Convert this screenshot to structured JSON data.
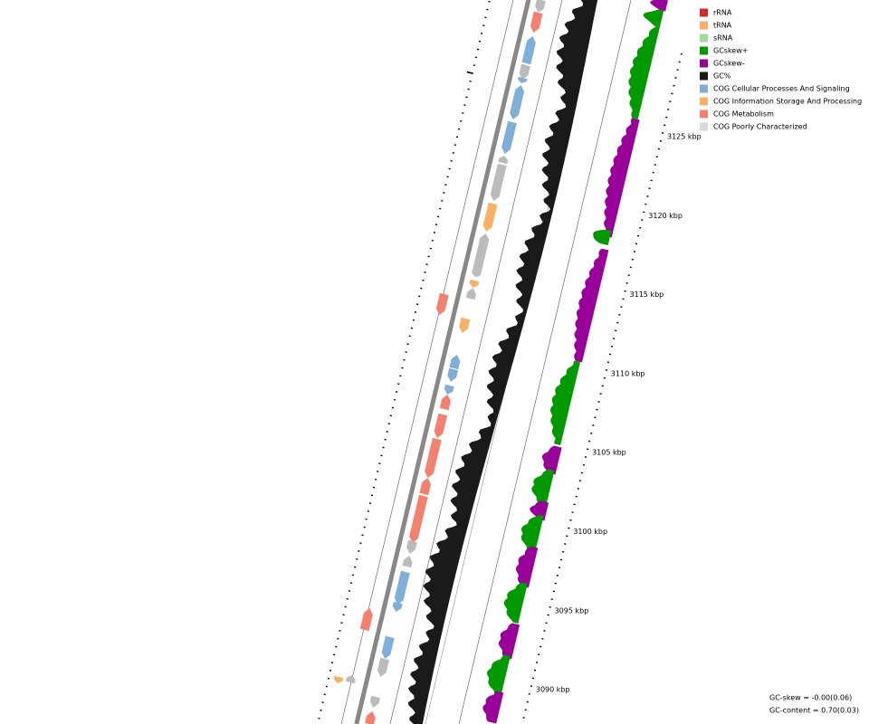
{
  "legend": [
    {
      "label": "rRNA",
      "color": "#d62728"
    },
    {
      "label": "tRNA",
      "color": "#fdae6b"
    },
    {
      "label": "sRNA",
      "color": "#a1d99b"
    },
    {
      "label": "GCskew+",
      "color": "#009900"
    },
    {
      "label": "GCskew-",
      "color": "#990099"
    },
    {
      "label": "GC%",
      "color": "#1a1a1a"
    },
    {
      "label": "COG Cellular Processes And Signaling",
      "color": "#7fafd6"
    },
    {
      "label": "COG Information Storage And Processing",
      "color": "#f8b063"
    },
    {
      "label": "COG Metabolism",
      "color": "#f4806f"
    },
    {
      "label": "COG Poorly Characterized",
      "color": "#d9d9d9"
    }
  ],
  "scale_labels": [
    "3125 kbp",
    "3120 kbp",
    "3115 kbp",
    "3110 kbp",
    "3105 kbp",
    "3100 kbp",
    "3095 kbp",
    "3090 kbp"
  ],
  "footer": {
    "gc_skew": "GC-skew = -0.00(0.06)",
    "gc_content": "GC-content = 0.70(0.03)"
  }
}
